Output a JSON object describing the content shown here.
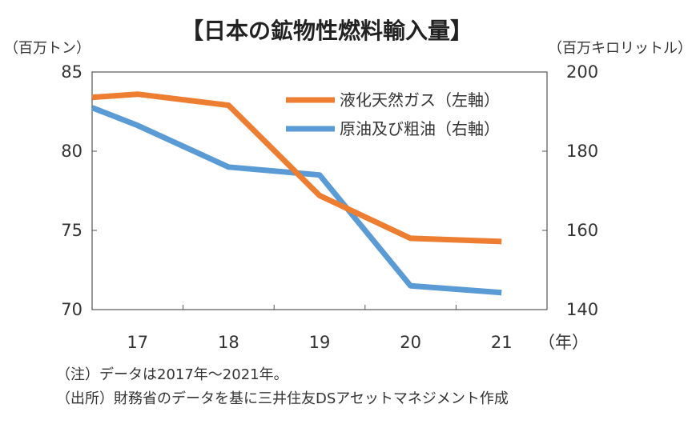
{
  "chart_data": {
    "type": "line",
    "title": "【日本の鉱物性燃料輸入量】",
    "left_unit": "（百万トン）",
    "right_unit": "（百万キロリットル）",
    "x_unit": "（年）",
    "categories": [
      "17",
      "18",
      "19",
      "20",
      "21"
    ],
    "left_axis": {
      "ylim": [
        70,
        85
      ],
      "ticks": [
        "70",
        "75",
        "80",
        "85"
      ]
    },
    "right_axis": {
      "ylim": [
        140,
        200
      ],
      "ticks": [
        "140",
        "160",
        "180",
        "200"
      ]
    },
    "series": [
      {
        "name": "液化天然ガス（左軸）",
        "axis": "left",
        "color": "#ED7D31",
        "x": [
          16.5,
          17,
          18,
          19,
          20,
          21
        ],
        "values": [
          83.4,
          83.6,
          82.9,
          77.2,
          74.5,
          74.3
        ]
      },
      {
        "name": "原油及び粗油（右軸）",
        "axis": "right",
        "color": "#5B9BD5",
        "x": [
          16.5,
          17,
          18,
          19,
          20,
          21
        ],
        "values": [
          191,
          186.5,
          176,
          174,
          146,
          144.3
        ]
      }
    ],
    "notes": [
      "（注）データは2017年～2021年。",
      "（出所）財務省のデータを基に三井住友DSアセットマネジメント作成"
    ]
  }
}
